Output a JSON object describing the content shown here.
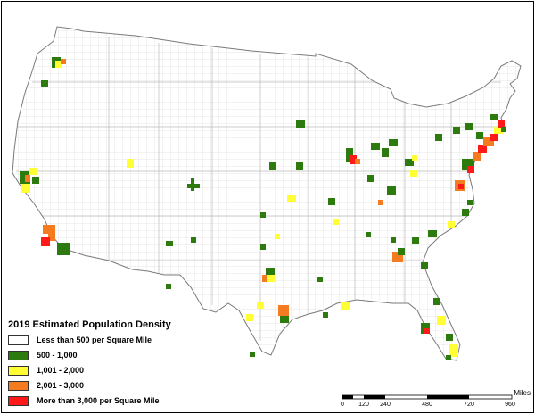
{
  "legend": {
    "title": "2019 Estimated Population Density",
    "items": [
      {
        "label": "Less than 500 per Square Mile",
        "color": "#ffffff"
      },
      {
        "label": "500 - 1,000",
        "color": "#2d7b0e"
      },
      {
        "label": "1,001 - 2,000",
        "color": "#ffff33"
      },
      {
        "label": "2,001 - 3,000",
        "color": "#f47b20"
      },
      {
        "label": "More than 3,000 per Square Mile",
        "color": "#ff1a1a"
      }
    ]
  },
  "scale": {
    "unit": "Miles",
    "ticks": [
      "0",
      "120",
      "240",
      "480",
      "720",
      "960"
    ]
  }
}
